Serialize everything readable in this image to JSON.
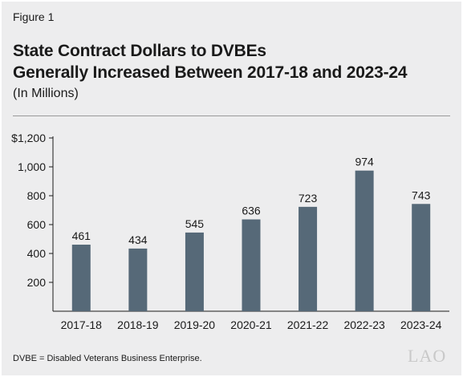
{
  "figure_label": "Figure 1",
  "title_line1": "State Contract Dollars to DVBEs",
  "title_line2": "Generally Increased Between 2017-18 and 2023-24",
  "subtitle": "(In Millions)",
  "note": "DVBE = Disabled Veterans Business Enterprise.",
  "logo": "LAO",
  "colors": {
    "bar": "#566978",
    "background": "#ededee"
  },
  "chart_data": {
    "type": "bar",
    "categories": [
      "2017-18",
      "2018-19",
      "2019-20",
      "2020-21",
      "2021-22",
      "2022-23",
      "2023-24"
    ],
    "values": [
      461,
      434,
      545,
      636,
      723,
      974,
      743
    ],
    "data_labels": [
      "461",
      "434",
      "545",
      "636",
      "723",
      "974",
      "743"
    ],
    "yticks": [
      200,
      400,
      600,
      800,
      1000,
      1200
    ],
    "ytick_labels": [
      "200",
      "400",
      "600",
      "800",
      "1,000",
      "$1,200"
    ],
    "ylim": [
      0,
      1200
    ],
    "grid": false
  }
}
